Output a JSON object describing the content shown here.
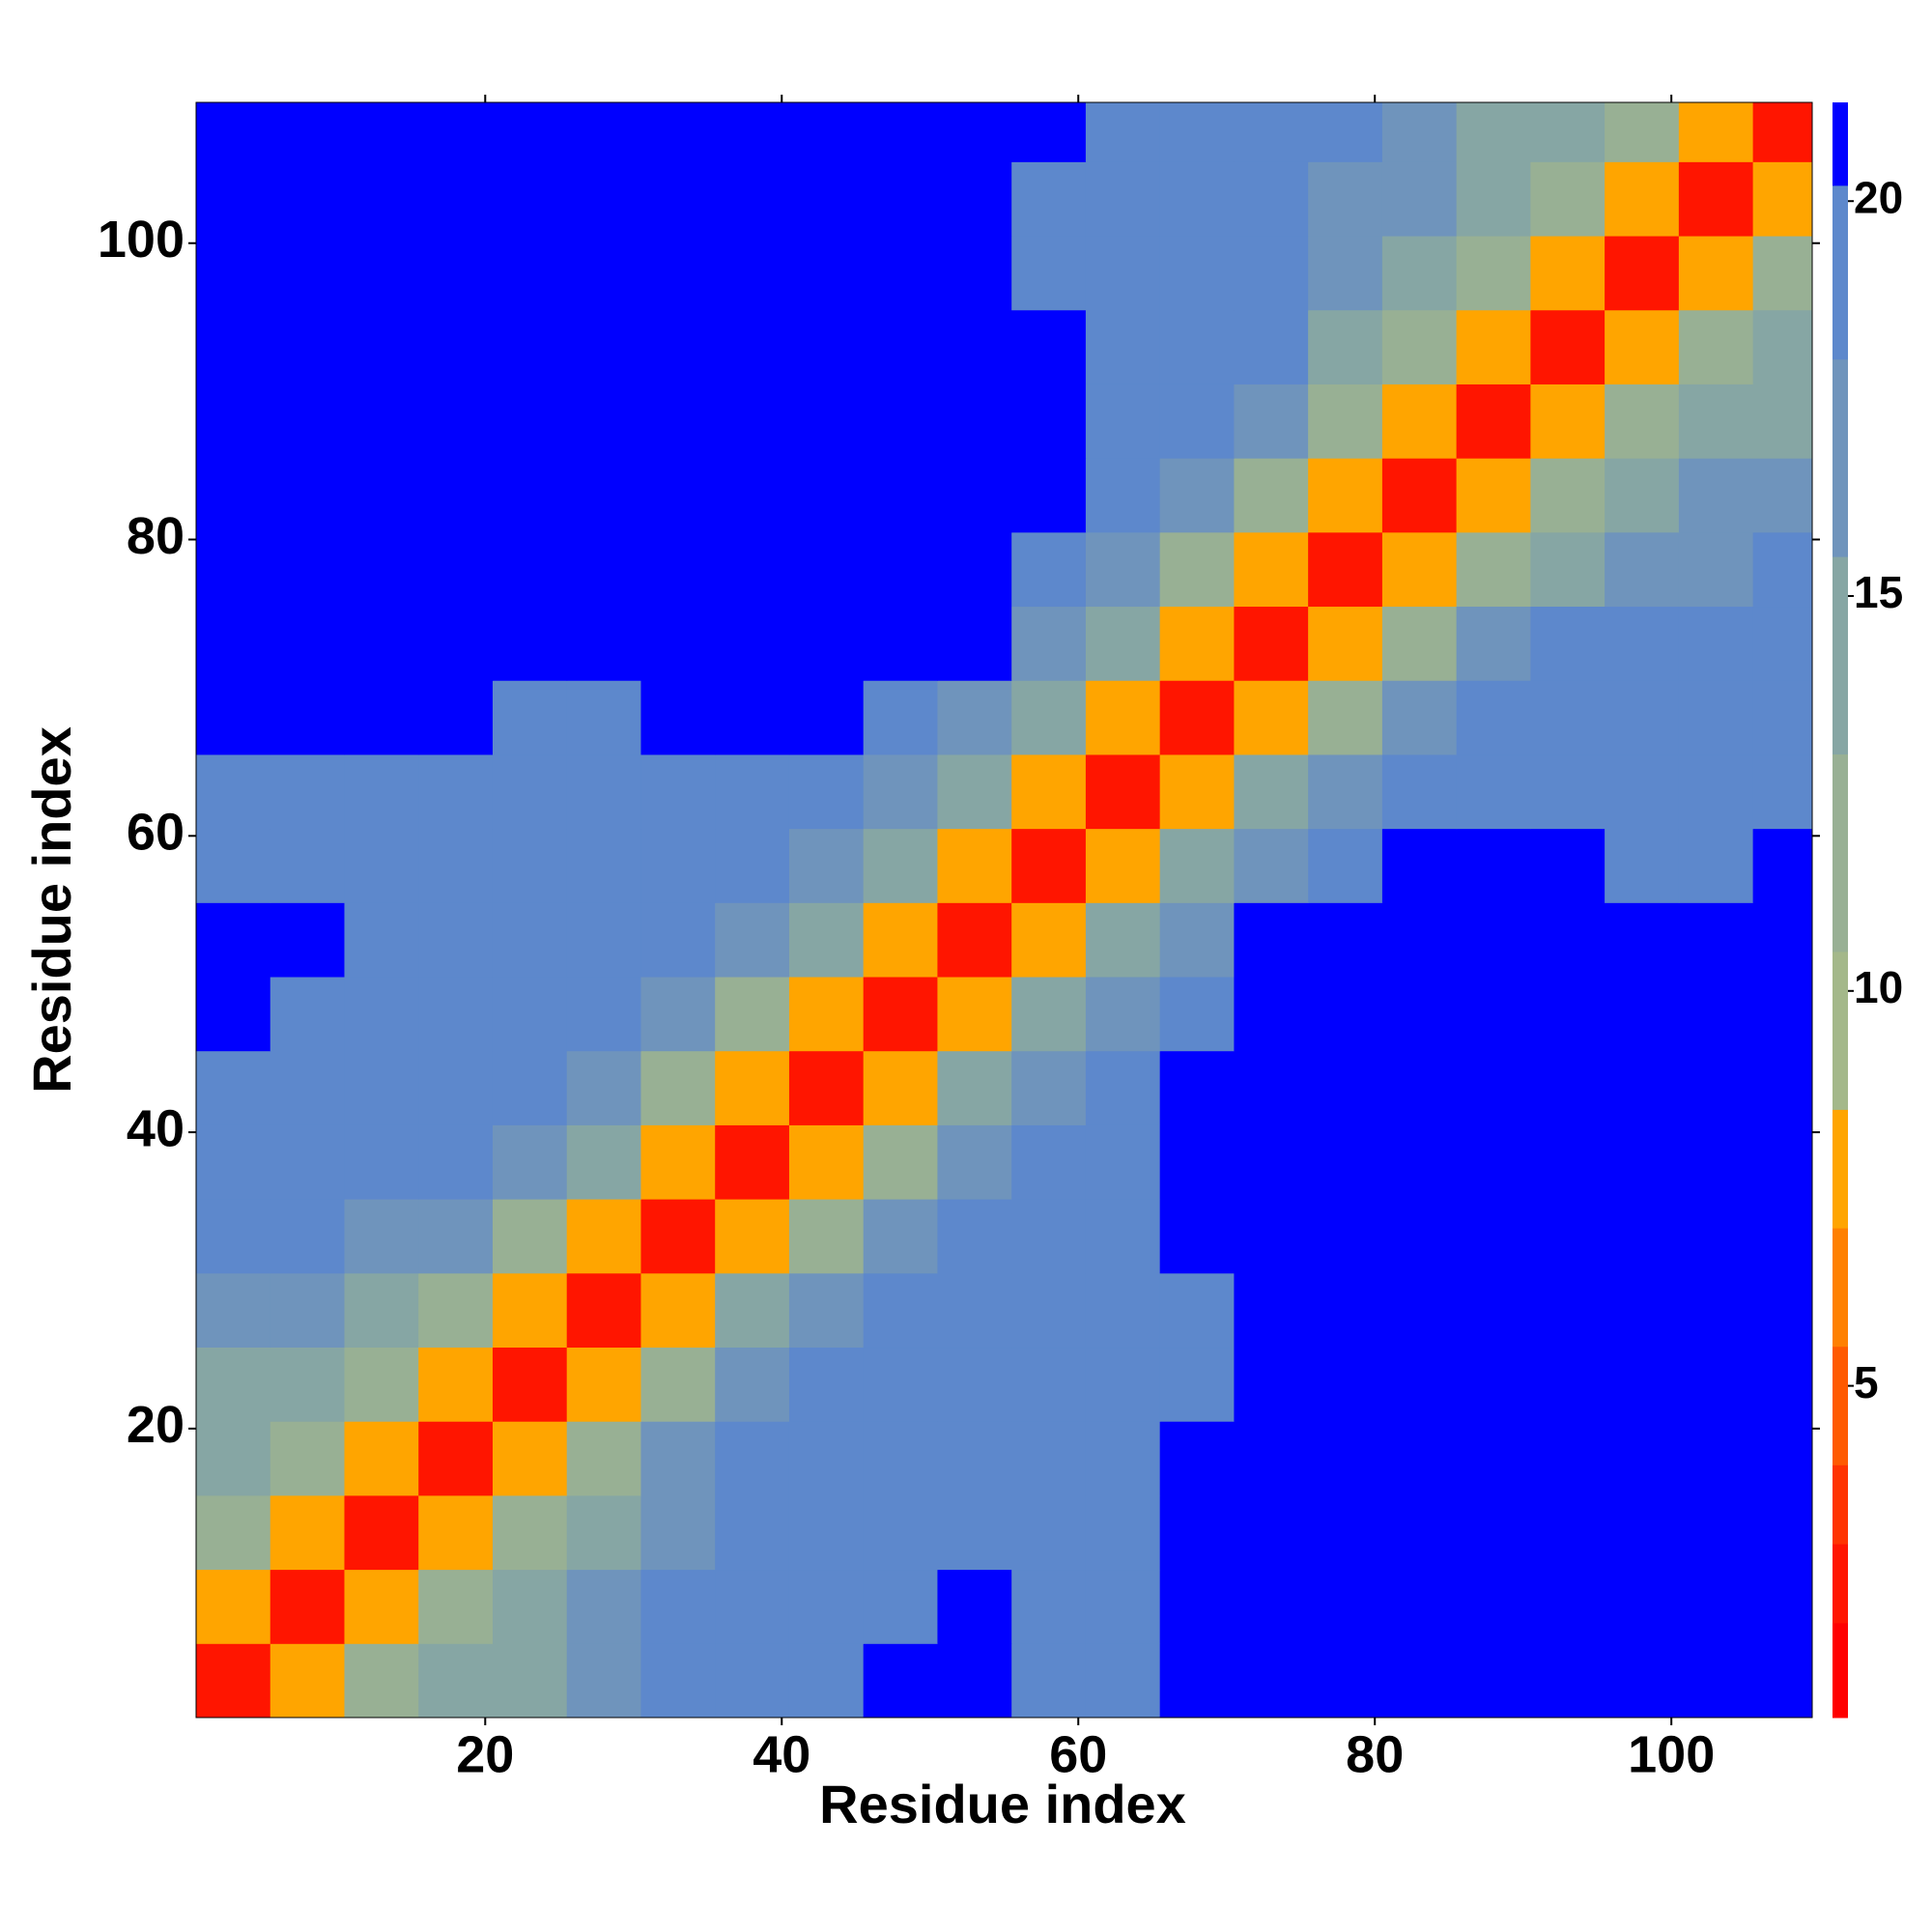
{
  "chart_data": {
    "type": "heatmap",
    "x_label": "Residue index",
    "y_label": "Residue index",
    "xlim": [
      0.5,
      109.5
    ],
    "ylim": [
      0.5,
      109.5
    ],
    "xticks": [
      20,
      40,
      60,
      80,
      100
    ],
    "yticks": [
      20,
      40,
      60,
      80,
      100
    ],
    "x_edges": [
      0.5,
      5.5,
      10.5,
      15.5,
      20.5,
      25.5,
      30.5,
      35.5,
      40.5,
      45.5,
      50.5,
      55.5,
      60.5,
      65.5,
      70.5,
      75.5,
      80.5,
      85.5,
      90.5,
      95.5,
      100.5,
      105.5,
      109.5
    ],
    "y_edges": [
      0.5,
      5.5,
      10.5,
      15.5,
      20.5,
      25.5,
      30.5,
      35.5,
      40.5,
      45.5,
      50.5,
      55.5,
      60.5,
      65.5,
      70.5,
      75.5,
      80.5,
      85.5,
      90.5,
      95.5,
      100.5,
      105.5,
      109.5
    ],
    "z": [
      [
        2.5,
        7,
        11,
        14,
        15,
        17,
        18,
        19,
        19.5,
        20.5,
        20.5,
        20,
        20,
        20.5,
        21,
        21,
        21,
        21,
        21,
        21,
        21,
        21
      ],
      [
        7,
        2.5,
        7,
        12,
        14,
        16,
        18,
        19,
        19.5,
        20,
        20.5,
        19.5,
        19.5,
        20.5,
        21,
        20.5,
        21,
        20.5,
        21,
        21,
        21,
        21
      ],
      [
        11,
        7,
        2.5,
        7,
        11,
        15,
        17,
        18.5,
        19.5,
        20,
        20,
        20,
        20,
        20.5,
        21,
        20.5,
        21,
        20.5,
        20.5,
        21,
        21,
        21
      ],
      [
        14,
        12,
        7,
        2.5,
        7.5,
        12,
        16,
        18,
        19.5,
        20,
        20,
        19.5,
        20,
        20.5,
        21,
        21,
        20.5,
        21,
        20.5,
        20.5,
        21,
        21
      ],
      [
        15,
        14,
        11,
        7.5,
        2.5,
        8,
        12.5,
        16.5,
        18.5,
        19,
        19,
        19,
        19.5,
        19.5,
        20.5,
        21,
        21,
        20.5,
        21,
        20.5,
        21,
        21
      ],
      [
        17,
        16,
        15,
        12,
        8,
        2.5,
        8,
        13,
        17.5,
        18.5,
        18.5,
        19,
        19.5,
        20,
        20.5,
        21,
        21,
        21,
        21,
        21,
        21,
        21
      ],
      [
        18,
        18,
        17,
        16,
        12.5,
        8,
        2.5,
        7.5,
        12.5,
        17,
        18.5,
        19,
        19.5,
        20.5,
        21,
        21,
        21,
        21,
        21,
        21,
        21,
        21
      ],
      [
        19,
        19,
        18.5,
        18,
        16.5,
        13,
        7.5,
        2.5,
        7,
        12.5,
        17,
        19,
        19.5,
        20.5,
        21,
        21,
        21,
        21,
        21,
        21,
        21,
        21
      ],
      [
        19.5,
        19.5,
        19.5,
        19.5,
        18.5,
        17.5,
        12.5,
        7,
        2.5,
        8,
        13,
        17.5,
        19.5,
        20.5,
        21,
        21,
        21,
        21,
        21,
        21,
        21,
        21
      ],
      [
        20.5,
        20,
        20,
        20,
        19,
        18.5,
        17,
        12.5,
        8,
        2.5,
        8,
        13,
        17.5,
        20,
        21,
        21,
        21,
        21,
        21,
        21,
        21,
        21
      ],
      [
        20.5,
        20.5,
        20,
        20,
        19,
        18.5,
        18.5,
        17,
        13,
        8,
        2.5,
        8,
        13,
        17.5,
        20.5,
        21,
        21,
        21,
        21,
        21,
        21,
        21
      ],
      [
        20,
        19.5,
        20,
        19.5,
        19,
        19,
        19,
        19,
        17.5,
        13,
        8,
        2.5,
        8,
        13,
        17.5,
        20,
        20.5,
        21,
        20.5,
        19.5,
        19.5,
        21
      ],
      [
        20,
        19.5,
        20,
        20,
        19.5,
        19.5,
        19.5,
        19.5,
        19.5,
        17.5,
        13,
        8,
        2.5,
        8,
        13,
        17,
        19.5,
        20,
        19.5,
        19,
        18.5,
        20
      ],
      [
        20.5,
        20.5,
        20.5,
        20.5,
        19.5,
        20,
        20.5,
        20.5,
        20.5,
        20,
        17.5,
        13,
        8,
        2.5,
        8,
        12.5,
        17,
        18.5,
        18.5,
        18,
        18.5,
        19
      ],
      [
        21,
        21,
        21,
        21,
        20.5,
        20.5,
        21,
        21,
        21,
        21,
        20.5,
        17.5,
        13,
        8,
        2.5,
        7.5,
        12,
        16,
        18,
        18,
        18,
        18.5
      ],
      [
        21,
        20.5,
        20.5,
        21,
        21,
        21,
        21,
        21,
        21,
        21,
        21,
        20,
        17,
        12.5,
        7.5,
        2.5,
        7,
        11.5,
        15,
        17.5,
        17.5,
        18
      ],
      [
        21,
        21,
        21,
        20.5,
        21,
        21,
        21,
        21,
        21,
        21,
        21,
        20.5,
        19.5,
        17,
        12,
        7,
        2.5,
        7,
        11.5,
        14,
        16,
        17
      ],
      [
        21,
        20.5,
        20.5,
        21,
        20.5,
        21,
        21,
        21,
        21,
        21,
        21,
        21,
        20,
        18.5,
        16,
        11.5,
        7,
        2.5,
        7.5,
        11.5,
        13.5,
        15
      ],
      [
        21,
        21,
        20.5,
        20.5,
        21,
        21,
        21,
        21,
        21,
        21,
        21,
        20.5,
        19.5,
        18.5,
        18,
        15,
        11.5,
        7.5,
        2.5,
        8,
        11.5,
        13
      ],
      [
        21,
        21,
        21,
        20.5,
        20.5,
        21,
        21,
        21,
        21,
        21,
        21,
        19.5,
        19,
        18,
        18,
        17.5,
        14,
        11.5,
        8,
        2.5,
        8,
        11.5
      ],
      [
        21,
        21,
        21,
        21,
        21,
        21,
        21,
        21,
        21,
        21,
        21,
        19.5,
        18.5,
        18.5,
        18,
        17.5,
        16,
        13.5,
        11.5,
        8,
        2.5,
        8
      ],
      [
        21,
        21,
        21,
        21,
        21,
        21,
        21,
        21,
        21,
        21,
        21,
        21,
        20,
        19,
        18.5,
        18,
        17,
        15,
        13,
        11.5,
        8,
        2.5
      ]
    ],
    "colorbar": {
      "lim": [
        0.8,
        21.25
      ],
      "ticks": [
        5,
        10,
        15,
        20
      ],
      "bounds": [
        0.8,
        2,
        3,
        4,
        5.5,
        7,
        8.5,
        10.5,
        13,
        15.5,
        18,
        20.2,
        21.25
      ],
      "colors": [
        "#ff0000",
        "#ff1500",
        "#ff3300",
        "#ff5a00",
        "#ff8000",
        "#ffa500",
        "#a4b88a",
        "#98b094",
        "#86a6a4",
        "#6f94bc",
        "#5d88cc",
        "#0000ff"
      ]
    }
  }
}
